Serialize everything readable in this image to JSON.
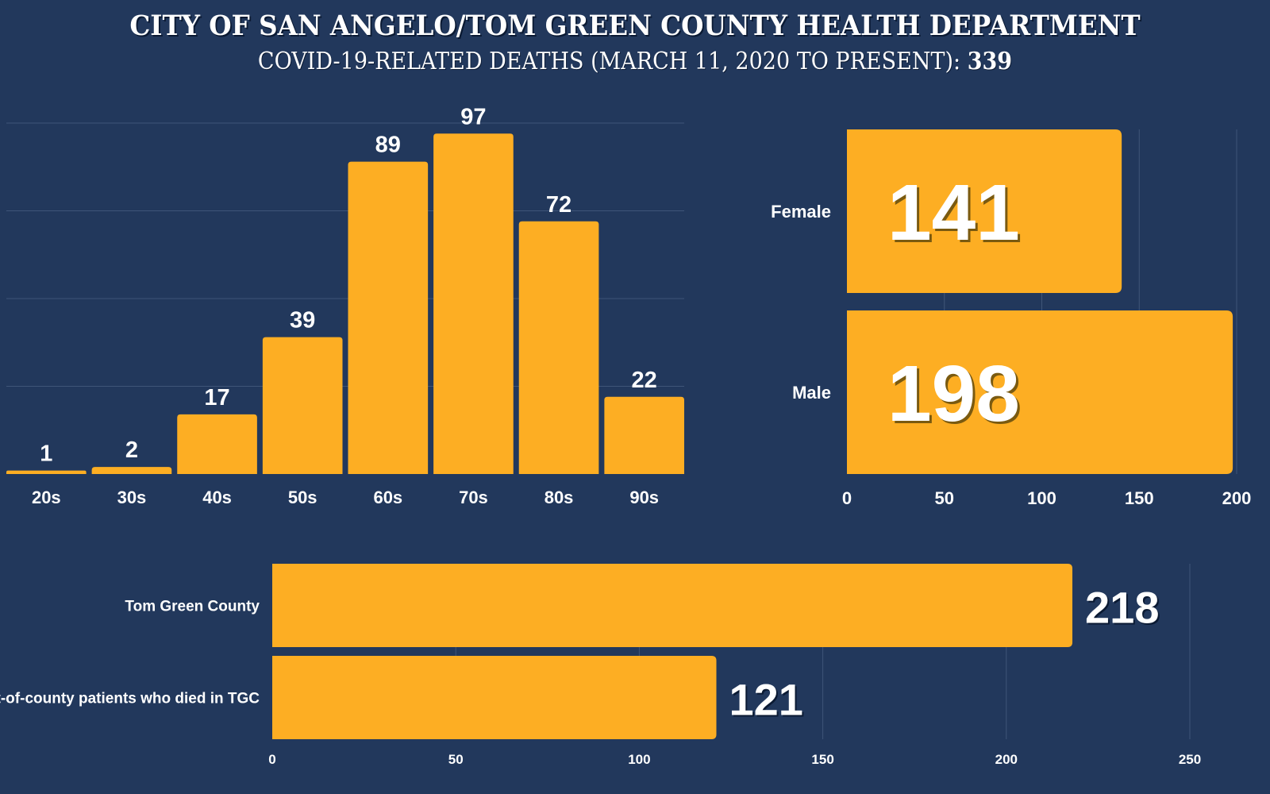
{
  "header": {
    "title": "CITY OF SAN ANGELO/TOM GREEN COUNTY HEALTH DEPARTMENT",
    "subtitle": "COVID-19-RELATED DEATHS (MARCH 11, 2020 TO PRESENT):",
    "total": "339"
  },
  "colors": {
    "background": "#22385c",
    "bar": "#fdae23",
    "grid": "#3f5578"
  },
  "chart_data": [
    {
      "type": "bar",
      "orientation": "vertical",
      "categories": [
        "20s",
        "30s",
        "40s",
        "50s",
        "60s",
        "70s",
        "80s",
        "90s"
      ],
      "values": [
        1,
        2,
        17,
        39,
        89,
        97,
        72,
        22
      ],
      "ylim": [
        0,
        100
      ],
      "grid": true,
      "data_labels": true
    },
    {
      "type": "bar",
      "orientation": "horizontal",
      "categories": [
        "Female",
        "Male"
      ],
      "values": [
        141,
        198
      ],
      "xlim": [
        0,
        200
      ],
      "xticks": [
        "0",
        "50",
        "100",
        "150",
        "200"
      ],
      "grid": true,
      "data_labels": true
    },
    {
      "type": "bar",
      "orientation": "horizontal",
      "categories": [
        "Tom Green County",
        "Out-of-county patients who died in TGC"
      ],
      "values": [
        218,
        121
      ],
      "xlim": [
        0,
        250
      ],
      "xticks": [
        "0",
        "50",
        "100",
        "150",
        "200",
        "250"
      ],
      "grid": true,
      "data_labels": true
    }
  ]
}
